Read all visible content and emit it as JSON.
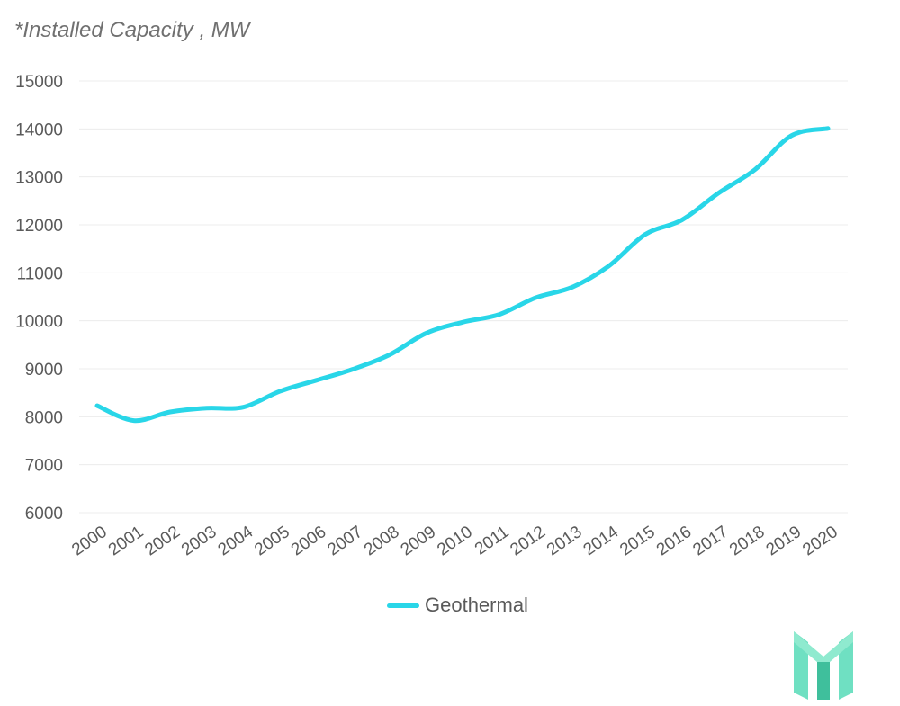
{
  "chart_data": {
    "type": "line",
    "title": "*Installed Capacity , MW",
    "categories": [
      "2000",
      "2001",
      "2002",
      "2003",
      "2004",
      "2005",
      "2006",
      "2007",
      "2008",
      "2009",
      "2010",
      "2011",
      "2012",
      "2013",
      "2014",
      "2015",
      "2016",
      "2017",
      "2018",
      "2019",
      "2020"
    ],
    "series": [
      {
        "name": "Geothermal",
        "color": "#29d6e8",
        "values": [
          8230,
          7920,
          8100,
          8180,
          8200,
          8530,
          8760,
          8990,
          9290,
          9740,
          9970,
          10130,
          10480,
          10700,
          11140,
          11800,
          12100,
          12660,
          13150,
          13860,
          14010
        ]
      }
    ],
    "ylim": [
      6000,
      15000
    ],
    "yticks": [
      "6000",
      "7000",
      "8000",
      "9000",
      "10000",
      "11000",
      "12000",
      "13000",
      "14000",
      "15000"
    ],
    "grid": true,
    "legend_position": "bottom"
  },
  "logo": {
    "icon": "brand-logo-icon",
    "colors": [
      "#6fe0c2",
      "#3fbf9c",
      "#2aa687"
    ]
  }
}
